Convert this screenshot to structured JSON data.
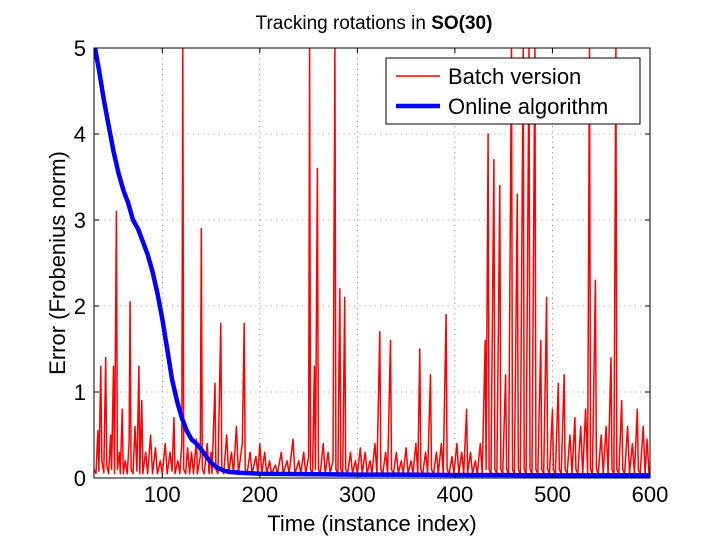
{
  "chart_data": {
    "type": "line",
    "title": "Tracking rotations in",
    "title_bold": "SO(30)",
    "xlabel": "Time (instance index)",
    "ylabel": "Error (Frobenius norm)",
    "xlim": [
      30,
      600
    ],
    "ylim": [
      0,
      5
    ],
    "xticks": [
      100,
      200,
      300,
      400,
      500,
      600
    ],
    "yticks": [
      0,
      1,
      2,
      3,
      4,
      5
    ],
    "grid": true,
    "legend_position": "top-right",
    "series": [
      {
        "name": "Batch version",
        "color": "#ff0000",
        "width": "thin",
        "points": [
          [
            30,
            0.1
          ],
          [
            32,
            0.05
          ],
          [
            34,
            0.55
          ],
          [
            35,
            0.08
          ],
          [
            37,
            1.3
          ],
          [
            38,
            0.2
          ],
          [
            40,
            0.06
          ],
          [
            42,
            1.4
          ],
          [
            43,
            0.15
          ],
          [
            45,
            0.05
          ],
          [
            47,
            0.5
          ],
          [
            48,
            0.1
          ],
          [
            50,
            1.3
          ],
          [
            51,
            0.05
          ],
          [
            53,
            3.1
          ],
          [
            54,
            0.1
          ],
          [
            56,
            0.3
          ],
          [
            57,
            0.05
          ],
          [
            59,
            0.8
          ],
          [
            60,
            0.05
          ],
          [
            62,
            0.2
          ],
          [
            64,
            0.05
          ],
          [
            66,
            0.4
          ],
          [
            67,
            2.05
          ],
          [
            68,
            0.1
          ],
          [
            70,
            0.05
          ],
          [
            72,
            0.6
          ],
          [
            74,
            0.08
          ],
          [
            76,
            1.3
          ],
          [
            77,
            0.05
          ],
          [
            79,
            0.9
          ],
          [
            80,
            0.05
          ],
          [
            83,
            0.3
          ],
          [
            85,
            0.05
          ],
          [
            88,
            0.5
          ],
          [
            90,
            0.05
          ],
          [
            93,
            0.35
          ],
          [
            95,
            0.05
          ],
          [
            98,
            0.2
          ],
          [
            100,
            0.05
          ],
          [
            103,
            0.4
          ],
          [
            105,
            0.05
          ],
          [
            108,
            0.3
          ],
          [
            110,
            0.08
          ],
          [
            112,
            0.7
          ],
          [
            113,
            0.05
          ],
          [
            116,
            0.2
          ],
          [
            118,
            0.05
          ],
          [
            120,
            0.4
          ],
          [
            121,
            5.0
          ],
          [
            122,
            0.1
          ],
          [
            124,
            0.05
          ],
          [
            126,
            0.35
          ],
          [
            128,
            0.05
          ],
          [
            130,
            0.3
          ],
          [
            132,
            0.05
          ],
          [
            135,
            0.45
          ],
          [
            136,
            0.05
          ],
          [
            139,
            0.25
          ],
          [
            140,
            2.9
          ],
          [
            141,
            0.1
          ],
          [
            143,
            0.05
          ],
          [
            146,
            0.4
          ],
          [
            148,
            0.05
          ],
          [
            150,
            0.3
          ],
          [
            151,
            0.05
          ],
          [
            154,
            1.1
          ],
          [
            155,
            0.1
          ],
          [
            157,
            0.05
          ],
          [
            160,
            1.8
          ],
          [
            161,
            0.1
          ],
          [
            163,
            0.05
          ],
          [
            166,
            0.5
          ],
          [
            168,
            0.05
          ],
          [
            171,
            0.3
          ],
          [
            173,
            0.05
          ],
          [
            176,
            0.6
          ],
          [
            178,
            0.05
          ],
          [
            182,
            0.4
          ],
          [
            184,
            1.8
          ],
          [
            185,
            0.1
          ],
          [
            187,
            0.05
          ],
          [
            190,
            0.3
          ],
          [
            192,
            0.05
          ],
          [
            196,
            0.25
          ],
          [
            198,
            0.05
          ],
          [
            200,
            0.4
          ],
          [
            202,
            0.05
          ],
          [
            205,
            0.3
          ],
          [
            207,
            0.05
          ],
          [
            210,
            0.2
          ],
          [
            212,
            0.05
          ],
          [
            216,
            0.15
          ],
          [
            218,
            0.05
          ],
          [
            222,
            0.3
          ],
          [
            224,
            0.05
          ],
          [
            228,
            0.2
          ],
          [
            230,
            0.05
          ],
          [
            234,
            0.45
          ],
          [
            236,
            0.05
          ],
          [
            240,
            0.2
          ],
          [
            242,
            0.05
          ],
          [
            245,
            0.3
          ],
          [
            247,
            0.05
          ],
          [
            250,
            0.25
          ],
          [
            251,
            5.0
          ],
          [
            252,
            0.1
          ],
          [
            254,
            0.05
          ],
          [
            256,
            1.3
          ],
          [
            257,
            0.1
          ],
          [
            259,
            3.6
          ],
          [
            260,
            0.1
          ],
          [
            262,
            0.05
          ],
          [
            265,
            0.4
          ],
          [
            267,
            0.05
          ],
          [
            270,
            0.3
          ],
          [
            272,
            0.05
          ],
          [
            275,
            0.2
          ],
          [
            277,
            5.0
          ],
          [
            278,
            0.1
          ],
          [
            280,
            0.05
          ],
          [
            282,
            2.2
          ],
          [
            283,
            0.1
          ],
          [
            285,
            0.05
          ],
          [
            287,
            2.1
          ],
          [
            288,
            0.1
          ],
          [
            290,
            0.05
          ],
          [
            293,
            0.3
          ],
          [
            295,
            0.05
          ],
          [
            298,
            0.2
          ],
          [
            300,
            0.05
          ],
          [
            303,
            0.35
          ],
          [
            305,
            0.05
          ],
          [
            308,
            0.3
          ],
          [
            310,
            0.05
          ],
          [
            313,
            0.2
          ],
          [
            315,
            0.05
          ],
          [
            318,
            0.4
          ],
          [
            320,
            0.05
          ],
          [
            323,
            1.7
          ],
          [
            324,
            0.1
          ],
          [
            326,
            0.05
          ],
          [
            329,
            0.3
          ],
          [
            331,
            0.05
          ],
          [
            334,
            1.6
          ],
          [
            335,
            0.1
          ],
          [
            337,
            0.05
          ],
          [
            340,
            0.3
          ],
          [
            342,
            0.05
          ],
          [
            345,
            0.2
          ],
          [
            347,
            0.05
          ],
          [
            350,
            0.35
          ],
          [
            352,
            0.05
          ],
          [
            355,
            0.2
          ],
          [
            357,
            0.05
          ],
          [
            360,
            0.4
          ],
          [
            362,
            0.05
          ],
          [
            364,
            1.5
          ],
          [
            365,
            0.1
          ],
          [
            367,
            0.05
          ],
          [
            370,
            0.3
          ],
          [
            372,
            0.05
          ],
          [
            375,
            1.2
          ],
          [
            376,
            0.1
          ],
          [
            378,
            0.05
          ],
          [
            381,
            0.3
          ],
          [
            383,
            0.05
          ],
          [
            386,
            0.4
          ],
          [
            388,
            0.05
          ],
          [
            391,
            1.9
          ],
          [
            392,
            0.1
          ],
          [
            394,
            0.05
          ],
          [
            397,
            0.25
          ],
          [
            399,
            0.05
          ],
          [
            402,
            0.4
          ],
          [
            404,
            0.05
          ],
          [
            407,
            0.3
          ],
          [
            409,
            0.05
          ],
          [
            412,
            0.8
          ],
          [
            413,
            0.05
          ],
          [
            416,
            0.3
          ],
          [
            418,
            0.05
          ],
          [
            421,
            0.2
          ],
          [
            423,
            0.05
          ],
          [
            426,
            0.4
          ],
          [
            428,
            0.05
          ],
          [
            431,
            1.6
          ],
          [
            432,
            0.1
          ],
          [
            434,
            4.0
          ],
          [
            435,
            0.1
          ],
          [
            437,
            0.05
          ],
          [
            440,
            3.7
          ],
          [
            441,
            0.1
          ],
          [
            443,
            0.05
          ],
          [
            446,
            3.4
          ],
          [
            447,
            0.1
          ],
          [
            449,
            0.05
          ],
          [
            452,
            1.2
          ],
          [
            453,
            0.1
          ],
          [
            455,
            0.05
          ],
          [
            458,
            5.0
          ],
          [
            459,
            0.1
          ],
          [
            461,
            0.05
          ],
          [
            464,
            3.3
          ],
          [
            465,
            0.1
          ],
          [
            467,
            0.05
          ],
          [
            470,
            5.0
          ],
          [
            471,
            0.1
          ],
          [
            473,
            0.05
          ],
          [
            476,
            5.0
          ],
          [
            477,
            0.1
          ],
          [
            479,
            0.05
          ],
          [
            482,
            5.0
          ],
          [
            483,
            0.1
          ],
          [
            485,
            0.05
          ],
          [
            488,
            1.6
          ],
          [
            489,
            0.1
          ],
          [
            491,
            0.05
          ],
          [
            494,
            2.1
          ],
          [
            495,
            0.1
          ],
          [
            497,
            0.05
          ],
          [
            500,
            0.8
          ],
          [
            501,
            0.1
          ],
          [
            503,
            0.05
          ],
          [
            506,
            1.1
          ],
          [
            507,
            0.1
          ],
          [
            509,
            0.05
          ],
          [
            512,
            1.2
          ],
          [
            513,
            0.1
          ],
          [
            515,
            0.05
          ],
          [
            518,
            0.5
          ],
          [
            520,
            0.05
          ],
          [
            523,
            0.7
          ],
          [
            524,
            0.1
          ],
          [
            526,
            0.05
          ],
          [
            529,
            0.6
          ],
          [
            531,
            0.05
          ],
          [
            534,
            0.8
          ],
          [
            536,
            0.05
          ],
          [
            538,
            5.0
          ],
          [
            539,
            0.1
          ],
          [
            541,
            0.05
          ],
          [
            544,
            2.3
          ],
          [
            545,
            0.1
          ],
          [
            547,
            0.05
          ],
          [
            550,
            0.5
          ],
          [
            552,
            0.05
          ],
          [
            555,
            0.6
          ],
          [
            557,
            0.05
          ],
          [
            560,
            1.4
          ],
          [
            561,
            0.1
          ],
          [
            563,
            0.05
          ],
          [
            565,
            5.0
          ],
          [
            566,
            0.1
          ],
          [
            568,
            0.05
          ],
          [
            571,
            0.9
          ],
          [
            572,
            0.1
          ],
          [
            574,
            0.05
          ],
          [
            577,
            0.6
          ],
          [
            579,
            0.05
          ],
          [
            582,
            0.4
          ],
          [
            584,
            0.05
          ],
          [
            587,
            0.8
          ],
          [
            588,
            0.1
          ],
          [
            590,
            0.05
          ],
          [
            593,
            0.6
          ],
          [
            595,
            0.05
          ],
          [
            597,
            0.45
          ],
          [
            599,
            0.05
          ],
          [
            600,
            0.1
          ]
        ]
      },
      {
        "name": "Online algorithm",
        "color": "#0000ff",
        "width": "thick",
        "points": [
          [
            31,
            5.0
          ],
          [
            35,
            4.75
          ],
          [
            40,
            4.4
          ],
          [
            45,
            4.1
          ],
          [
            50,
            3.8
          ],
          [
            55,
            3.55
          ],
          [
            60,
            3.35
          ],
          [
            65,
            3.2
          ],
          [
            70,
            3.0
          ],
          [
            75,
            2.9
          ],
          [
            80,
            2.75
          ],
          [
            85,
            2.6
          ],
          [
            90,
            2.4
          ],
          [
            95,
            2.15
          ],
          [
            100,
            1.85
          ],
          [
            105,
            1.5
          ],
          [
            110,
            1.15
          ],
          [
            115,
            0.9
          ],
          [
            120,
            0.7
          ],
          [
            125,
            0.55
          ],
          [
            130,
            0.45
          ],
          [
            135,
            0.4
          ],
          [
            140,
            0.33
          ],
          [
            145,
            0.25
          ],
          [
            150,
            0.18
          ],
          [
            155,
            0.13
          ],
          [
            160,
            0.1
          ],
          [
            165,
            0.08
          ],
          [
            170,
            0.07
          ],
          [
            180,
            0.06
          ],
          [
            200,
            0.05
          ],
          [
            250,
            0.045
          ],
          [
            300,
            0.04
          ],
          [
            350,
            0.04
          ],
          [
            400,
            0.035
          ],
          [
            450,
            0.035
          ],
          [
            500,
            0.03
          ],
          [
            550,
            0.03
          ],
          [
            600,
            0.03
          ]
        ]
      }
    ]
  }
}
